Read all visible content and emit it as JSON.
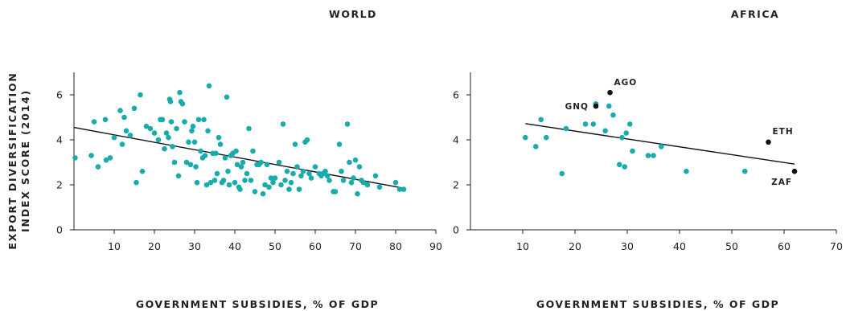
{
  "chart_data": [
    {
      "type": "scatter",
      "title": "WORLD",
      "xlabel": "GOVERNMENT SUBSIDIES, % OF GDP",
      "ylabel_lines": [
        "EXPORT DIVERSIFICATION",
        "INDEX SCORE (2014)"
      ],
      "xlim": [
        0,
        90
      ],
      "ylim": [
        0,
        7
      ],
      "xticks": [
        "10",
        "20",
        "30",
        "40",
        "50",
        "60",
        "70",
        "80",
        "90"
      ],
      "yticks": [
        "0",
        "2",
        "4",
        "6"
      ],
      "point_color": "#1aacac",
      "trend": {
        "x": [
          0,
          82
        ],
        "y": [
          4.55,
          1.85
        ]
      },
      "points": [
        [
          0.3,
          3.2
        ],
        [
          4.3,
          3.3
        ],
        [
          5,
          4.8
        ],
        [
          6,
          2.8
        ],
        [
          7.8,
          4.9
        ],
        [
          8,
          3.1
        ],
        [
          9,
          3.2
        ],
        [
          10,
          4.1
        ],
        [
          11.5,
          5.3
        ],
        [
          12,
          3.8
        ],
        [
          12.5,
          5
        ],
        [
          13,
          4.4
        ],
        [
          14,
          4.2
        ],
        [
          15,
          5.4
        ],
        [
          15.5,
          2.1
        ],
        [
          16.5,
          6
        ],
        [
          17,
          2.6
        ],
        [
          18,
          4.6
        ],
        [
          19,
          4.5
        ],
        [
          20,
          4.3
        ],
        [
          21,
          4
        ],
        [
          21.5,
          4.9
        ],
        [
          22,
          4.9
        ],
        [
          22.5,
          3.6
        ],
        [
          23,
          4.3
        ],
        [
          23.5,
          4.1
        ],
        [
          23.8,
          5.8
        ],
        [
          24,
          5.7
        ],
        [
          24.2,
          4.8
        ],
        [
          24.5,
          3.7
        ],
        [
          25,
          3
        ],
        [
          25.5,
          4.5
        ],
        [
          26,
          2.4
        ],
        [
          26.3,
          6.1
        ],
        [
          26.6,
          5.7
        ],
        [
          27,
          5.6
        ],
        [
          27.5,
          4.8
        ],
        [
          28,
          3
        ],
        [
          28.5,
          3.9
        ],
        [
          29,
          2.9
        ],
        [
          29.3,
          4.4
        ],
        [
          29.6,
          4.6
        ],
        [
          30,
          3.9
        ],
        [
          30.3,
          2.8
        ],
        [
          30.6,
          2.1
        ],
        [
          31,
          4.9
        ],
        [
          31.5,
          3.5
        ],
        [
          32,
          3.2
        ],
        [
          32.3,
          4.9
        ],
        [
          32.6,
          3.3
        ],
        [
          33,
          2
        ],
        [
          33.3,
          4.4
        ],
        [
          33.6,
          6.4
        ],
        [
          34,
          2.1
        ],
        [
          34.5,
          3.4
        ],
        [
          35,
          2.2
        ],
        [
          35.3,
          3.4
        ],
        [
          35.6,
          2.5
        ],
        [
          36,
          4.1
        ],
        [
          36.4,
          3.8
        ],
        [
          36.8,
          2.1
        ],
        [
          37.2,
          2.2
        ],
        [
          37.6,
          3.2
        ],
        [
          38,
          5.9
        ],
        [
          38.3,
          2.6
        ],
        [
          38.6,
          2
        ],
        [
          39,
          3.3
        ],
        [
          39.5,
          3.4
        ],
        [
          40,
          2.1
        ],
        [
          40.3,
          3.5
        ],
        [
          40.6,
          2.9
        ],
        [
          41,
          1.9
        ],
        [
          41.3,
          1.8
        ],
        [
          41.6,
          2.8
        ],
        [
          42,
          3
        ],
        [
          42.5,
          2.2
        ],
        [
          43,
          2.5
        ],
        [
          43.5,
          4.5
        ],
        [
          44,
          2.2
        ],
        [
          44.5,
          3.5
        ],
        [
          45,
          1.7
        ],
        [
          45.5,
          2.9
        ],
        [
          46,
          2.9
        ],
        [
          46.5,
          3
        ],
        [
          47,
          1.6
        ],
        [
          47.5,
          2
        ],
        [
          48,
          2.9
        ],
        [
          48.5,
          1.9
        ],
        [
          49,
          2.3
        ],
        [
          49.5,
          2.1
        ],
        [
          50,
          2.3
        ],
        [
          51,
          3
        ],
        [
          51.5,
          2
        ],
        [
          52,
          4.7
        ],
        [
          52.5,
          2.2
        ],
        [
          53,
          2.6
        ],
        [
          53.5,
          1.8
        ],
        [
          54,
          2.1
        ],
        [
          54.5,
          2.5
        ],
        [
          55,
          3.8
        ],
        [
          55.5,
          2.8
        ],
        [
          56,
          1.8
        ],
        [
          56.5,
          2.4
        ],
        [
          57,
          2.6
        ],
        [
          57.5,
          3.9
        ],
        [
          58,
          4
        ],
        [
          58.5,
          2.5
        ],
        [
          59,
          2.3
        ],
        [
          60,
          2.8
        ],
        [
          61,
          2.5
        ],
        [
          61.5,
          2.4
        ],
        [
          62,
          2.5
        ],
        [
          62.5,
          2.6
        ],
        [
          63,
          2.4
        ],
        [
          63.5,
          2.2
        ],
        [
          64.5,
          1.7
        ],
        [
          65,
          1.7
        ],
        [
          66,
          3.8
        ],
        [
          66.5,
          2.6
        ],
        [
          67,
          2.2
        ],
        [
          68,
          4.7
        ],
        [
          68.5,
          3
        ],
        [
          69,
          2.1
        ],
        [
          69.5,
          2.3
        ],
        [
          70,
          3.1
        ],
        [
          70.5,
          1.6
        ],
        [
          71,
          2.8
        ],
        [
          71.5,
          2.2
        ],
        [
          72,
          2.1
        ],
        [
          73,
          2
        ],
        [
          75,
          2.4
        ],
        [
          76,
          1.9
        ],
        [
          80,
          2.1
        ],
        [
          81,
          1.8
        ],
        [
          82,
          1.8
        ]
      ]
    },
    {
      "type": "scatter",
      "title": "AFRICA",
      "xlabel": "GOVERNMENT SUBSIDIES, % OF GDP",
      "xlim": [
        0,
        70
      ],
      "ylim": [
        0,
        7
      ],
      "xticks": [
        "10",
        "20",
        "30",
        "40",
        "50",
        "60",
        "70"
      ],
      "yticks": [
        "0",
        "2",
        "4",
        "6"
      ],
      "point_color": "#1aacac",
      "highlight_color": "#111111",
      "trend": {
        "x": [
          10.5,
          62
        ],
        "y": [
          4.72,
          2.92
        ]
      },
      "points": [
        [
          10.5,
          4.1
        ],
        [
          12.5,
          3.7
        ],
        [
          13.5,
          4.9
        ],
        [
          14.5,
          4.1
        ],
        [
          17.5,
          2.5
        ],
        [
          18.3,
          4.5
        ],
        [
          22,
          4.7
        ],
        [
          23.5,
          4.7
        ],
        [
          24,
          5.6
        ],
        [
          25.8,
          4.4
        ],
        [
          26.5,
          5.5
        ],
        [
          27.3,
          5.1
        ],
        [
          28.5,
          2.9
        ],
        [
          29,
          4.1
        ],
        [
          29.5,
          2.8
        ],
        [
          29.8,
          4.3
        ],
        [
          30.5,
          4.7
        ],
        [
          31,
          3.5
        ],
        [
          34,
          3.3
        ],
        [
          35,
          3.3
        ],
        [
          36.5,
          3.7
        ],
        [
          41.3,
          2.6
        ],
        [
          52.5,
          2.6
        ]
      ],
      "labeled_points": [
        {
          "label": "AGO",
          "x": 26.7,
          "y": 6.1
        },
        {
          "label": "GNQ",
          "x": 24,
          "y": 5.5
        },
        {
          "label": "ETH",
          "x": 57,
          "y": 3.9
        },
        {
          "label": "ZAF",
          "x": 62,
          "y": 2.6
        }
      ]
    }
  ]
}
